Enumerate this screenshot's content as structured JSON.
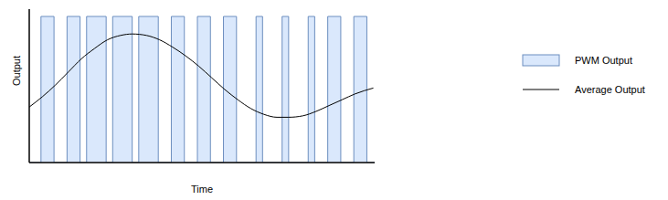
{
  "chart_data": {
    "type": "line",
    "x_label": "Time",
    "y_label": "Output",
    "xlim": [
      0,
      530
    ],
    "ylim": [
      0,
      1.05
    ],
    "tick_labels": false,
    "grid": false,
    "legend": "right",
    "series": [
      {
        "name": "PWM Output",
        "type": "area",
        "line_style": "step",
        "color": "#dae8fc",
        "x": [
          0,
          18,
          38,
          58,
          78,
          88,
          118,
          128,
          158,
          168,
          198,
          218,
          238,
          258,
          278,
          298,
          318,
          348,
          358,
          388,
          398,
          428,
          438,
          458,
          478,
          498,
          518,
          530
        ],
        "values": [
          0,
          1,
          0,
          1,
          0,
          1,
          0,
          1,
          0,
          1,
          0,
          1,
          0,
          1,
          0,
          1,
          0,
          1,
          0,
          1,
          0,
          1,
          0,
          1,
          0,
          1,
          0,
          0
        ]
      },
      {
        "name": "Average Output",
        "type": "line",
        "line_style": "solid",
        "marker": "none",
        "color": "#000000",
        "x": [
          0,
          20,
          40,
          60,
          80,
          100,
          120,
          140,
          158,
          180,
          200,
          220,
          240,
          260,
          280,
          300,
          320,
          340,
          360,
          380,
          398,
          420,
          440,
          460,
          480,
          500,
          528
        ],
        "values": [
          0.38,
          0.45,
          0.53,
          0.62,
          0.71,
          0.78,
          0.84,
          0.87,
          0.88,
          0.87,
          0.84,
          0.79,
          0.73,
          0.66,
          0.58,
          0.5,
          0.43,
          0.37,
          0.33,
          0.31,
          0.31,
          0.32,
          0.35,
          0.39,
          0.43,
          0.47,
          0.51
        ]
      }
    ]
  }
}
